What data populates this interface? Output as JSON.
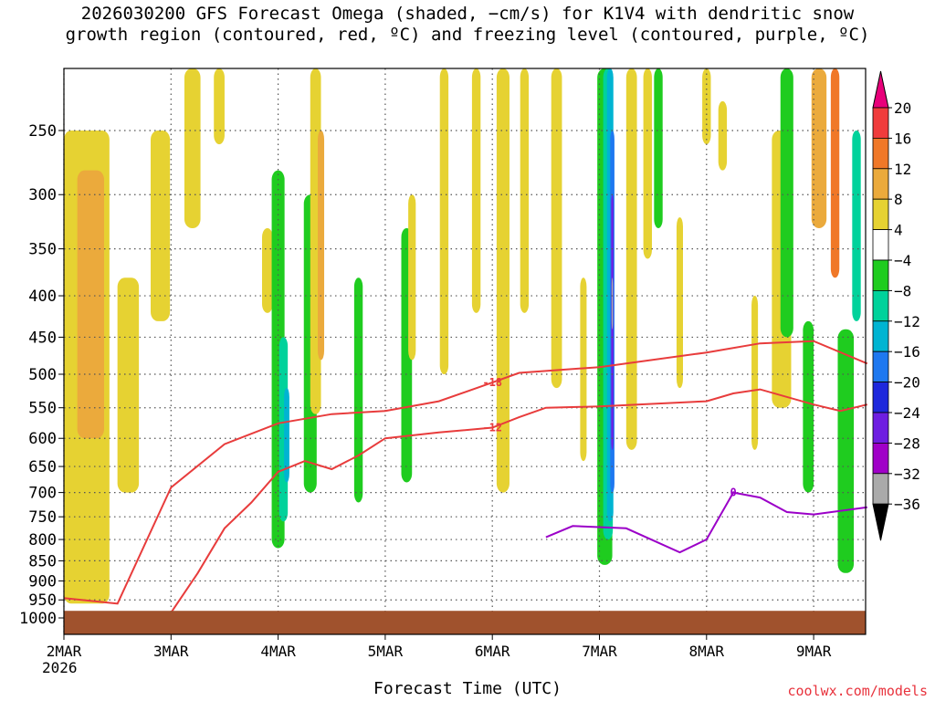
{
  "title_line1": "2026030200 GFS Forecast Omega (shaded, −cm/s) for K1V4 with dendritic snow",
  "title_line2": "growth region (contoured, red, ºC) and freezing level (contoured, purple, ºC)",
  "xlabel": "Forecast Time (UTC)",
  "credit": "coolwx.com/models",
  "year": "2026",
  "chart_data": {
    "type": "heatmap",
    "x_ticks": [
      "2MAR",
      "3MAR",
      "4MAR",
      "5MAR",
      "6MAR",
      "7MAR",
      "8MAR",
      "9MAR"
    ],
    "y_ticks": [
      250,
      300,
      350,
      400,
      450,
      500,
      550,
      600,
      650,
      700,
      750,
      800,
      850,
      900,
      950,
      1000
    ],
    "y_axis": "pressure (hPa), log scale",
    "colorbar": {
      "labels": [
        20,
        16,
        12,
        8,
        4,
        -4,
        -8,
        -12,
        -16,
        -20,
        -24,
        -28,
        -32,
        -36
      ],
      "colors": [
        "#e8007a",
        "#f03c3c",
        "#f07828",
        "#ebaa3c",
        "#e6d232",
        "#ffffff",
        "#1fcc1f",
        "#00d29b",
        "#00b4d2",
        "#1e78f0",
        "#1e28dc",
        "#6e1ee1",
        "#a000c8",
        "#aaaaaa",
        "#000000"
      ]
    },
    "contours": [
      {
        "color": "#e83c3c",
        "level": -12,
        "points": [
          [
            "2MAR 19Z",
            1000
          ],
          [
            "3MAR 00Z",
            985
          ],
          [
            "3MAR 06Z",
            880
          ],
          [
            "3MAR 12Z",
            775
          ],
          [
            "3MAR 18Z",
            720
          ],
          [
            "4MAR 00Z",
            660
          ],
          [
            "4MAR 06Z",
            640
          ],
          [
            "4MAR 12Z",
            655
          ],
          [
            "4MAR 18Z",
            630
          ],
          [
            "5MAR 00Z",
            600
          ],
          [
            "5MAR 12Z",
            590
          ],
          [
            "6MAR 00Z",
            582
          ],
          [
            "6MAR 06Z",
            565
          ],
          [
            "6MAR 12Z",
            550
          ],
          [
            "7MAR 00Z",
            548
          ],
          [
            "8MAR 00Z",
            540
          ],
          [
            "8MAR 06Z",
            528
          ],
          [
            "8MAR 12Z",
            522
          ],
          [
            "9MAR 00Z",
            545
          ],
          [
            "9MAR 06Z",
            555
          ],
          [
            "9MAR 12Z",
            545
          ]
        ]
      },
      {
        "color": "#e83c3c",
        "level": -18,
        "points": [
          [
            "2MAR 00Z",
            945
          ],
          [
            "2MAR 12Z",
            960
          ],
          [
            "3MAR 00Z",
            690
          ],
          [
            "3MAR 12Z",
            610
          ],
          [
            "4MAR 00Z",
            575
          ],
          [
            "4MAR 12Z",
            560
          ],
          [
            "5MAR 00Z",
            555
          ],
          [
            "5MAR 12Z",
            540
          ],
          [
            "6MAR 00Z",
            512
          ],
          [
            "6MAR 06Z",
            498
          ],
          [
            "7MAR 00Z",
            490
          ],
          [
            "8MAR 00Z",
            470
          ],
          [
            "8MAR 12Z",
            458
          ],
          [
            "9MAR 00Z",
            455
          ],
          [
            "9MAR 12Z",
            485
          ]
        ]
      },
      {
        "color": "#9b00c8",
        "level": 0,
        "points": [
          [
            "6MAR 12Z",
            795
          ],
          [
            "6MAR 18Z",
            770
          ],
          [
            "7MAR 06Z",
            775
          ],
          [
            "7MAR 18Z",
            830
          ],
          [
            "8MAR 00Z",
            800
          ],
          [
            "8MAR 06Z",
            700
          ],
          [
            "8MAR 12Z",
            710
          ],
          [
            "8MAR 18Z",
            740
          ],
          [
            "9MAR 00Z",
            745
          ],
          [
            "9MAR 12Z",
            730
          ]
        ]
      }
    ],
    "terrain": {
      "color": "#a0522d",
      "surface_hPa": 980
    }
  }
}
